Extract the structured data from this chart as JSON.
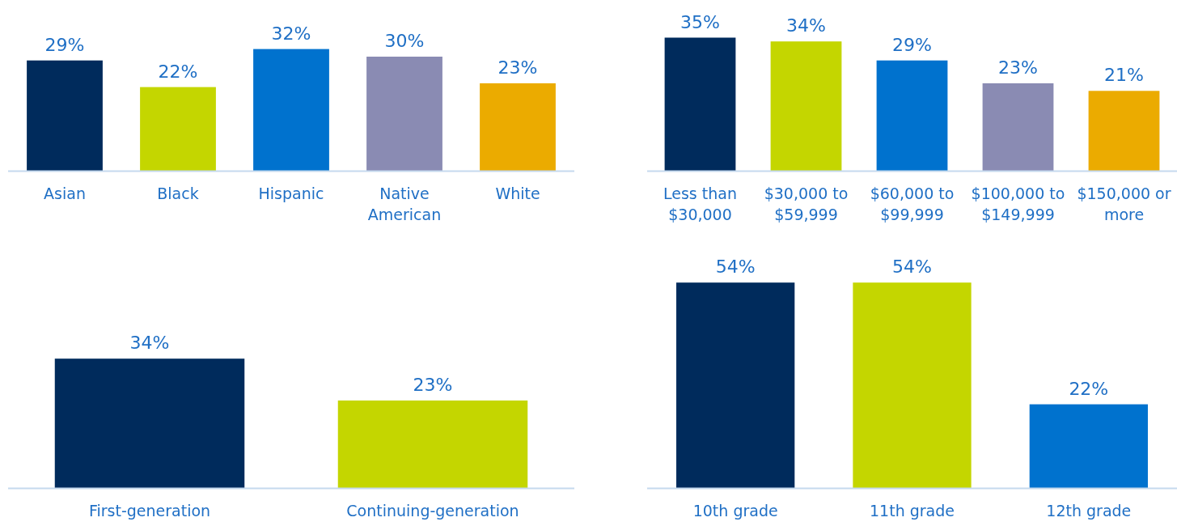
{
  "chart_data": [
    {
      "type": "bar",
      "categories": [
        "Asian",
        "Black",
        "Hispanic",
        "Native American",
        "White"
      ],
      "values": [
        29,
        22,
        32,
        30,
        23
      ],
      "colors": [
        "#002b5c",
        "#c4d600",
        "#0072ce",
        "#8a8bb3",
        "#ebab00"
      ],
      "value_labels": [
        "29%",
        "22%",
        "32%",
        "30%",
        "23%"
      ]
    },
    {
      "type": "bar",
      "categories": [
        "Less than $30,000",
        "$30,000 to $59,999",
        "$60,000 to $99,999",
        "$100,000 to $149,999",
        "$150,000 or more"
      ],
      "values": [
        35,
        34,
        29,
        23,
        21
      ],
      "colors": [
        "#002b5c",
        "#c4d600",
        "#0072ce",
        "#8a8bb3",
        "#ebab00"
      ],
      "value_labels": [
        "35%",
        "34%",
        "29%",
        "23%",
        "21%"
      ]
    },
    {
      "type": "bar",
      "categories": [
        "First-generation",
        "Continuing-generation"
      ],
      "values": [
        34,
        23
      ],
      "colors": [
        "#002b5c",
        "#c4d600"
      ],
      "value_labels": [
        "34%",
        "23%"
      ]
    },
    {
      "type": "bar",
      "categories": [
        "10th grade",
        "11th grade",
        "12th grade"
      ],
      "values": [
        54,
        54,
        22
      ],
      "colors": [
        "#002b5c",
        "#c4d600",
        "#0072ce"
      ],
      "value_labels": [
        "54%",
        "54%",
        "22%"
      ]
    }
  ]
}
